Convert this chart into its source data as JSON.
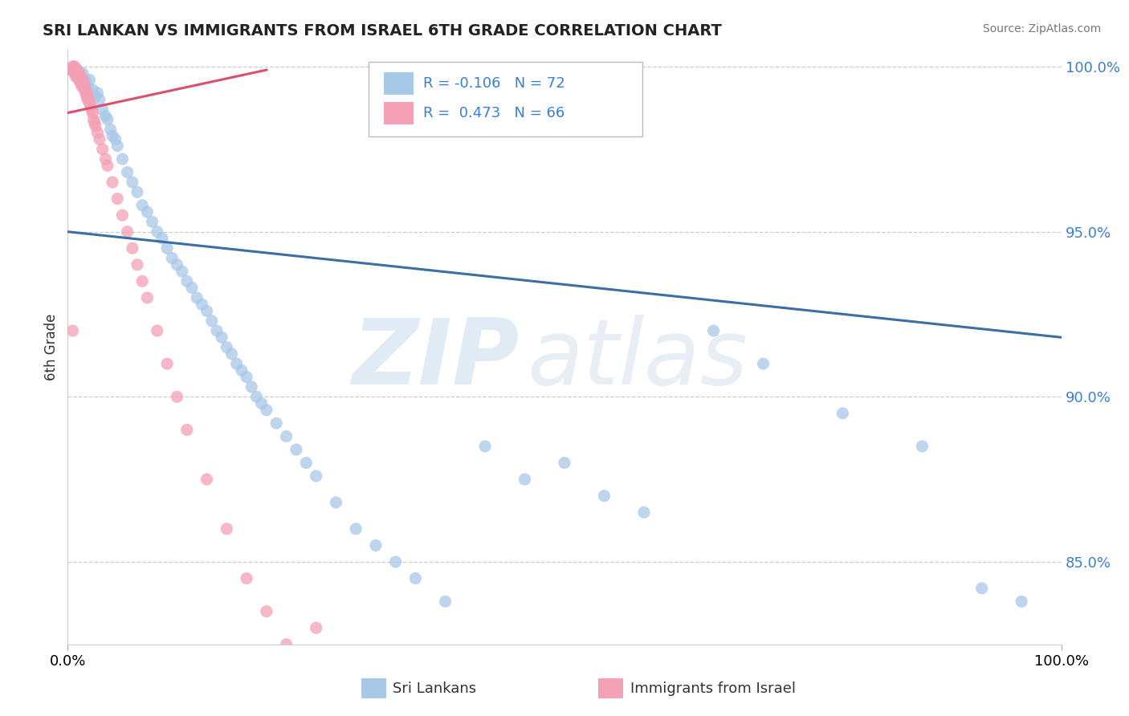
{
  "title": "SRI LANKAN VS IMMIGRANTS FROM ISRAEL 6TH GRADE CORRELATION CHART",
  "source_text": "Source: ZipAtlas.com",
  "ylabel": "6th Grade",
  "blue_color": "#A8C8E8",
  "pink_color": "#F4A0B5",
  "blue_line_color": "#3B6EA5",
  "pink_line_color": "#D94F6E",
  "watermark_zip": "ZIP",
  "watermark_atlas": "atlas",
  "xlim": [
    0.0,
    1.0
  ],
  "ylim": [
    0.825,
    1.005
  ],
  "yticks": [
    0.85,
    0.9,
    0.95,
    1.0
  ],
  "ytick_labels": [
    "85.0%",
    "90.0%",
    "95.0%",
    "100.0%"
  ],
  "blue_line_x0": 0.0,
  "blue_line_x1": 1.0,
  "blue_line_y0": 0.95,
  "blue_line_y1": 0.918,
  "pink_line_x0": 0.0,
  "pink_line_x1": 0.2,
  "pink_line_y0": 0.986,
  "pink_line_y1": 0.999,
  "blue_scatter_x": [
    0.005,
    0.008,
    0.01,
    0.012,
    0.015,
    0.015,
    0.018,
    0.02,
    0.022,
    0.025,
    0.028,
    0.03,
    0.032,
    0.035,
    0.038,
    0.04,
    0.043,
    0.045,
    0.048,
    0.05,
    0.055,
    0.06,
    0.065,
    0.07,
    0.075,
    0.08,
    0.085,
    0.09,
    0.095,
    0.1,
    0.105,
    0.11,
    0.115,
    0.12,
    0.125,
    0.13,
    0.135,
    0.14,
    0.145,
    0.15,
    0.155,
    0.16,
    0.165,
    0.17,
    0.175,
    0.18,
    0.185,
    0.19,
    0.195,
    0.2,
    0.21,
    0.22,
    0.23,
    0.24,
    0.25,
    0.27,
    0.29,
    0.31,
    0.33,
    0.35,
    0.38,
    0.42,
    0.46,
    0.5,
    0.54,
    0.58,
    0.65,
    0.7,
    0.78,
    0.86,
    0.92,
    0.96
  ],
  "blue_scatter_y": [
    0.999,
    0.997,
    0.999,
    0.998,
    0.998,
    0.995,
    0.996,
    0.994,
    0.996,
    0.993,
    0.991,
    0.992,
    0.99,
    0.987,
    0.985,
    0.984,
    0.981,
    0.979,
    0.978,
    0.976,
    0.972,
    0.968,
    0.965,
    0.962,
    0.958,
    0.956,
    0.953,
    0.95,
    0.948,
    0.945,
    0.942,
    0.94,
    0.938,
    0.935,
    0.933,
    0.93,
    0.928,
    0.926,
    0.923,
    0.92,
    0.918,
    0.915,
    0.913,
    0.91,
    0.908,
    0.906,
    0.903,
    0.9,
    0.898,
    0.896,
    0.892,
    0.888,
    0.884,
    0.88,
    0.876,
    0.868,
    0.86,
    0.855,
    0.85,
    0.845,
    0.838,
    0.885,
    0.875,
    0.88,
    0.87,
    0.865,
    0.92,
    0.91,
    0.895,
    0.885,
    0.842,
    0.838
  ],
  "pink_scatter_x": [
    0.003,
    0.004,
    0.005,
    0.005,
    0.006,
    0.006,
    0.007,
    0.007,
    0.008,
    0.008,
    0.009,
    0.009,
    0.01,
    0.01,
    0.011,
    0.011,
    0.012,
    0.012,
    0.013,
    0.013,
    0.014,
    0.014,
    0.015,
    0.015,
    0.016,
    0.016,
    0.017,
    0.017,
    0.018,
    0.018,
    0.019,
    0.019,
    0.02,
    0.02,
    0.021,
    0.022,
    0.023,
    0.024,
    0.025,
    0.026,
    0.027,
    0.028,
    0.03,
    0.032,
    0.035,
    0.038,
    0.04,
    0.045,
    0.05,
    0.055,
    0.06,
    0.065,
    0.07,
    0.075,
    0.08,
    0.09,
    0.1,
    0.11,
    0.12,
    0.14,
    0.16,
    0.18,
    0.2,
    0.22,
    0.25,
    0.005
  ],
  "pink_scatter_y": [
    0.999,
    0.999,
    1.0,
    0.999,
    1.0,
    0.999,
    1.0,
    0.998,
    0.999,
    0.998,
    0.999,
    0.997,
    0.998,
    0.997,
    0.998,
    0.996,
    0.997,
    0.996,
    0.997,
    0.995,
    0.996,
    0.994,
    0.996,
    0.995,
    0.995,
    0.994,
    0.994,
    0.993,
    0.993,
    0.992,
    0.992,
    0.991,
    0.991,
    0.99,
    0.99,
    0.989,
    0.988,
    0.987,
    0.986,
    0.984,
    0.983,
    0.982,
    0.98,
    0.978,
    0.975,
    0.972,
    0.97,
    0.965,
    0.96,
    0.955,
    0.95,
    0.945,
    0.94,
    0.935,
    0.93,
    0.92,
    0.91,
    0.9,
    0.89,
    0.875,
    0.86,
    0.845,
    0.835,
    0.825,
    0.83,
    0.92
  ]
}
